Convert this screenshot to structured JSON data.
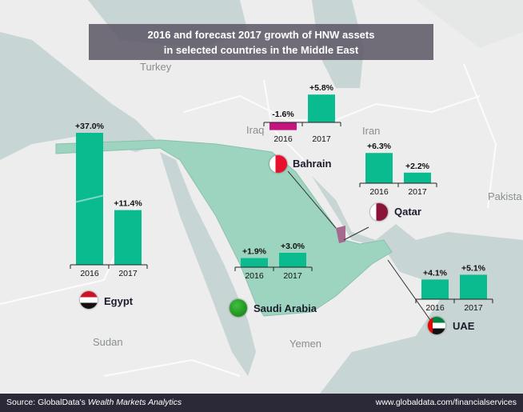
{
  "title_line1": "2016  and forecast 2017  growth  of HNW assets",
  "title_line2": "in selected countries in the Middle East",
  "map_labels": {
    "turkey": "Turkey",
    "iraq": "Iraq",
    "iran": "Iran",
    "pakistan": "Pakista",
    "sudan": "Sudan",
    "yemen": "Yemen"
  },
  "colors": {
    "positive": "#0abb8f",
    "negative": "#c3157d",
    "highlight_region": "#9dd4bf",
    "footer": "#2b2838"
  },
  "chart_data": [
    {
      "type": "bar",
      "country": "Egypt",
      "categories": [
        "2016",
        "2017"
      ],
      "values": [
        37.0,
        11.4
      ],
      "labels": [
        "+37.0%",
        "+11.4%"
      ],
      "axis_break": true
    },
    {
      "type": "bar",
      "country": "Bahrain",
      "categories": [
        "2016",
        "2017"
      ],
      "values": [
        -1.6,
        5.8
      ],
      "labels": [
        "-1.6%",
        "+5.8%"
      ]
    },
    {
      "type": "bar",
      "country": "Qatar",
      "categories": [
        "2016",
        "2017"
      ],
      "values": [
        6.3,
        2.2
      ],
      "labels": [
        "+6.3%",
        "+2.2%"
      ]
    },
    {
      "type": "bar",
      "country": "Saudi Arabia",
      "categories": [
        "2016",
        "2017"
      ],
      "values": [
        1.9,
        3.0
      ],
      "labels": [
        "+1.9%",
        "+3.0%"
      ]
    },
    {
      "type": "bar",
      "country": "UAE",
      "categories": [
        "2016",
        "2017"
      ],
      "values": [
        4.1,
        5.1
      ],
      "labels": [
        "+4.1%",
        "+5.1%"
      ]
    }
  ],
  "footer": {
    "source_prefix": "Source: GlobalData's ",
    "source_italic": "Wealth Markets Analytics",
    "url": "www.globaldata.com/financialservices"
  }
}
